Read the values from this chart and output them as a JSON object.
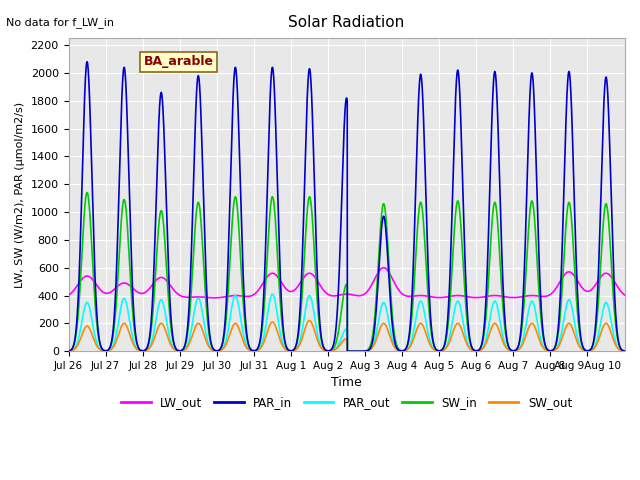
{
  "title": "Solar Radiation",
  "no_data_text": "No data for f_LW_in",
  "legend_label_text": "BA_arable",
  "xlabel": "Time",
  "ylabel": "LW, SW (W/m2), PAR (μmol/m2/s)",
  "ylim": [
    0,
    2250
  ],
  "yticks": [
    0,
    200,
    400,
    600,
    800,
    1000,
    1200,
    1400,
    1600,
    1800,
    2000,
    2200
  ],
  "date_labels": [
    "Jul 26",
    "Jul 27",
    "Jul 28",
    "Jul 29",
    "Jul 30",
    "Jul 31",
    "Aug 1",
    "Aug 2",
    "Aug 3",
    "Aug 4",
    "Aug 5",
    "Aug 6",
    "Aug 7",
    "Aug 8",
    "Aug 9Aug 10"
  ],
  "n_days": 15,
  "series": {
    "LW_out": {
      "color": "#ff00ff",
      "lw": 1.2
    },
    "PAR_in": {
      "color": "#0000cd",
      "lw": 1.2
    },
    "PAR_out": {
      "color": "#00ffff",
      "lw": 1.2
    },
    "SW_in": {
      "color": "#00cc00",
      "lw": 1.2
    },
    "SW_out": {
      "color": "#ff8800",
      "lw": 1.2
    }
  },
  "par_in_peaks": [
    2080,
    2040,
    1860,
    1980,
    2040,
    2040,
    2030,
    1820,
    970,
    1990,
    2020,
    2010,
    2000,
    2010,
    1970
  ],
  "sw_in_peaks": [
    1140,
    1090,
    1010,
    1070,
    1110,
    1110,
    1110,
    480,
    1060,
    1070,
    1080,
    1070,
    1080,
    1070,
    1060
  ],
  "sw_out_peaks": [
    180,
    200,
    200,
    200,
    200,
    210,
    220,
    90,
    200,
    200,
    200,
    200,
    200,
    200,
    200
  ],
  "par_out_peaks": [
    350,
    380,
    370,
    380,
    400,
    410,
    400,
    160,
    350,
    360,
    360,
    360,
    360,
    370,
    350
  ],
  "lw_out_peaks": [
    540,
    490,
    530,
    390,
    400,
    560,
    560,
    410,
    600,
    400,
    400,
    400,
    400,
    570,
    560
  ],
  "lw_out_night": 380,
  "aug2_day_index": 7,
  "background_color": "#e8e8e8",
  "grid_color": "#ffffff",
  "fig_bg": "#ffffff"
}
